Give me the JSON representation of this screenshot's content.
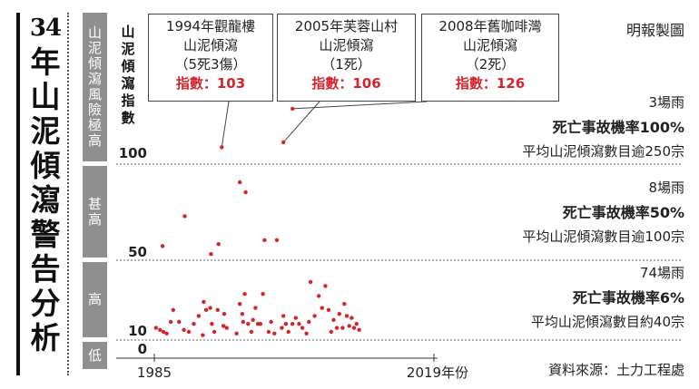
{
  "title_num": "34",
  "title_text": "年山泥傾瀉警告分析",
  "credit": "明報製圖",
  "source": "資料來源：土力工程處",
  "index_axis_label": "山泥傾瀉指數",
  "bands": [
    {
      "label": "山泥傾瀉風險極高"
    },
    {
      "label": "甚高"
    },
    {
      "label": "高"
    },
    {
      "label": "低"
    }
  ],
  "callouts": [
    {
      "line1": "1994年觀龍樓",
      "line2": "山泥傾瀉",
      "line3": "（5死3傷）",
      "idx": "指數：103"
    },
    {
      "line1": "2005年芙蓉山村",
      "line2": "山泥傾瀉",
      "line3": "（1死）",
      "idx": "指數：106"
    },
    {
      "line1": "2008年舊咖啡灣",
      "line2": "山泥傾瀉",
      "line3": "（2死）",
      "idx": "指數：126"
    }
  ],
  "annotations": [
    {
      "count": "3場雨",
      "rate": "死亡事故機率100%",
      "avg": "平均山泥傾瀉數目逾250宗"
    },
    {
      "count": "8場雨",
      "rate": "死亡事故機率50%",
      "avg": "平均山泥傾瀉數目逾100宗"
    },
    {
      "count": "74場雨",
      "rate": "死亡事故機率6%",
      "avg": "平均山泥傾瀉數目約40宗"
    }
  ],
  "accent_color": "#d3242b",
  "chart_data": {
    "type": "scatter",
    "x_tick_labels": [
      "1985",
      "2019年份"
    ],
    "y_tick_labels": [
      "0",
      "10",
      "50",
      "100"
    ],
    "xlim": [
      1985,
      2019
    ],
    "ylim": [
      0,
      150
    ],
    "series": [
      {
        "points": [
          [
            1985.2,
            12
          ],
          [
            1985.7,
            11
          ],
          [
            1986.1,
            10
          ],
          [
            1986.5,
            9
          ],
          [
            1986.0,
            53
          ],
          [
            1987.0,
            15
          ],
          [
            1987.3,
            21
          ],
          [
            1988.0,
            15
          ],
          [
            1988.6,
            11
          ],
          [
            1988.7,
            68
          ],
          [
            1989.2,
            10
          ],
          [
            1989.8,
            14
          ],
          [
            1990.4,
            18
          ],
          [
            1990.9,
            8
          ],
          [
            1991.0,
            25
          ],
          [
            1991.3,
            21
          ],
          [
            1991.8,
            22
          ],
          [
            1991.9,
            49
          ],
          [
            1992.0,
            14
          ],
          [
            1992.3,
            10
          ],
          [
            1992.7,
            21
          ],
          [
            1992.8,
            54
          ],
          [
            1993.4,
            13
          ],
          [
            1993.5,
            19
          ],
          [
            1993.8,
            12
          ],
          [
            1993.2,
            103
          ],
          [
            1995.0,
            9
          ],
          [
            1995.4,
            24
          ],
          [
            1995.7,
            19
          ],
          [
            1995.8,
            15
          ],
          [
            1996.0,
            29
          ],
          [
            1996.4,
            14
          ],
          [
            1996.8,
            10
          ],
          [
            1997.0,
            16
          ],
          [
            1997.3,
            22
          ],
          [
            1997.6,
            14
          ],
          [
            1997.9,
            14
          ],
          [
            1998.2,
            29
          ],
          [
            1998.4,
            56
          ],
          [
            1998.9,
            10
          ],
          [
            1999.2,
            15
          ],
          [
            1999.6,
            9
          ],
          [
            1999.9,
            56
          ],
          [
            1995.4,
            85
          ],
          [
            1996.1,
            80
          ],
          [
            2000.5,
            12
          ],
          [
            2000.7,
            18
          ],
          [
            2001.0,
            14
          ],
          [
            2001.3,
            10
          ],
          [
            2001.8,
            14
          ],
          [
            2002.2,
            17
          ],
          [
            2002.6,
            14
          ],
          [
            2003.0,
            12
          ],
          [
            2003.5,
            9
          ],
          [
            2003.8,
            15
          ],
          [
            2000.7,
            106
          ],
          [
            2004.0,
            35
          ],
          [
            2004.5,
            18
          ],
          [
            2005.0,
            28
          ],
          [
            2005.4,
            22
          ],
          [
            2005.8,
            33
          ],
          [
            2006.2,
            21
          ],
          [
            2006.5,
            10
          ],
          [
            2006.8,
            16
          ],
          [
            2007.2,
            12
          ],
          [
            2007.5,
            19
          ],
          [
            2007.9,
            12
          ],
          [
            2008.1,
            24
          ],
          [
            2008.4,
            18
          ],
          [
            2008.7,
            13
          ],
          [
            2009.0,
            17
          ],
          [
            2009.3,
            12
          ],
          [
            2009.6,
            14
          ],
          [
            2009.9,
            11
          ],
          [
            2001.8,
            126
          ]
        ]
      }
    ],
    "grid": false
  }
}
